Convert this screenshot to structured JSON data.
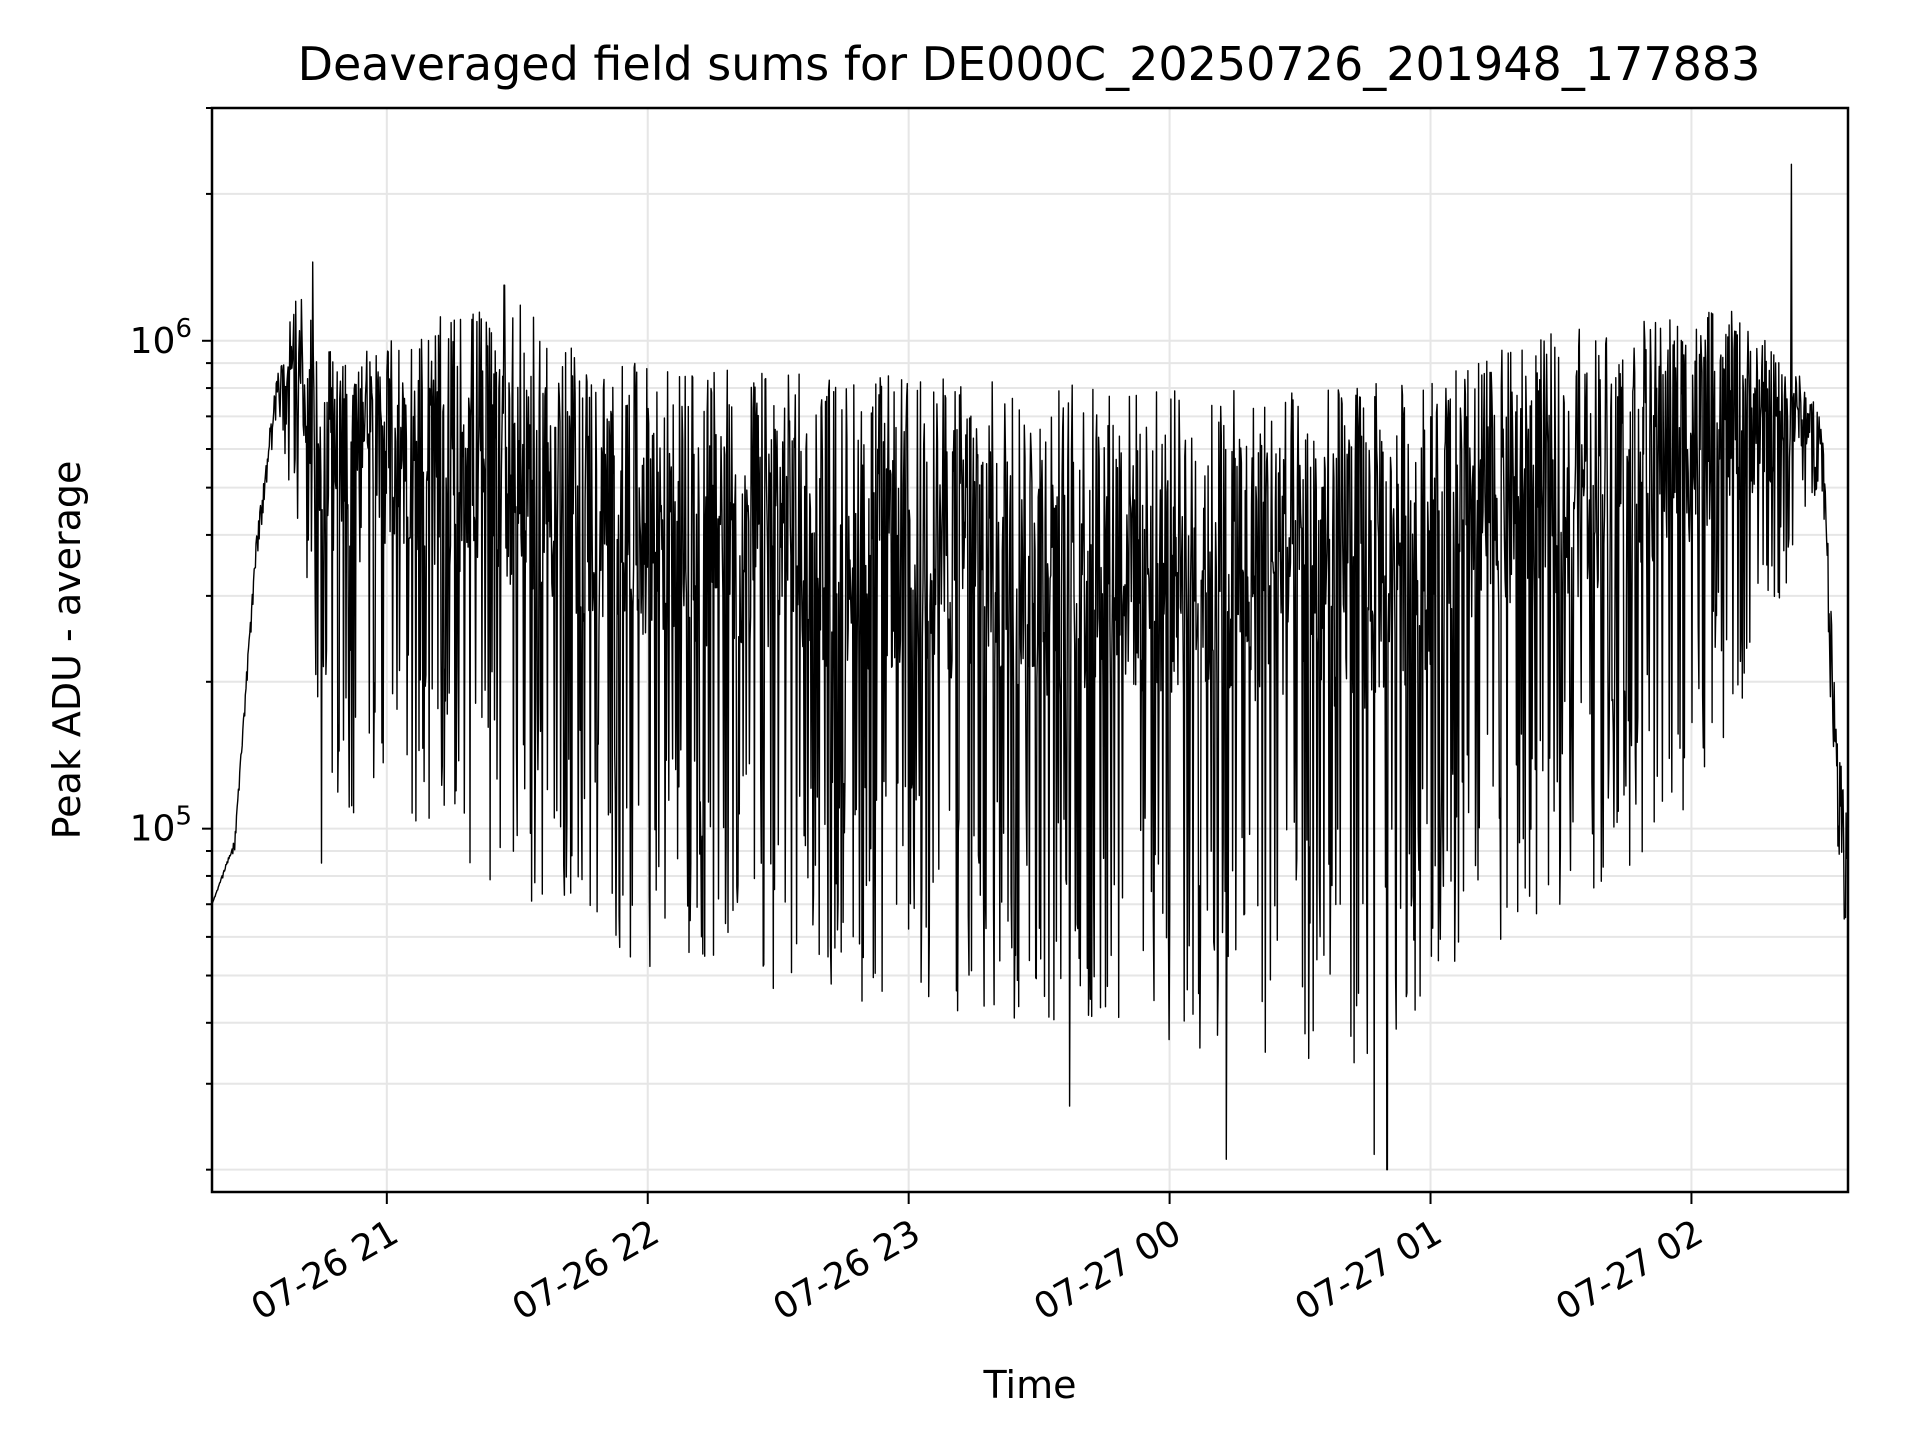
{
  "chart_data": {
    "type": "line",
    "title": "Deaveraged field sums for DE000C_20250726_201948_177883",
    "xlabel": "Time",
    "ylabel": "Peak ADU - average",
    "x_range": [
      "07-26 20:19:48",
      "07-27 02:36:00"
    ],
    "x_ticks": [
      {
        "time": "07-26 21:00",
        "label": "07-26 21"
      },
      {
        "time": "07-26 22:00",
        "label": "07-26 22"
      },
      {
        "time": "07-26 23:00",
        "label": "07-26 23"
      },
      {
        "time": "07-27 00:00",
        "label": "07-27 00"
      },
      {
        "time": "07-27 01:00",
        "label": "07-27 01"
      },
      {
        "time": "07-27 02:00",
        "label": "07-27 02"
      }
    ],
    "y_scale": "log",
    "ylim": [
      18000,
      3000000
    ],
    "y_ticks": [
      {
        "value": 100000,
        "base": "10",
        "exp": "5"
      },
      {
        "value": 1000000,
        "base": "10",
        "exp": "6"
      }
    ],
    "grid": true,
    "series": [
      {
        "color": "#000000",
        "envelope": {
          "times": [
            "20:19:48",
            "20:25",
            "20:30",
            "20:35",
            "20:40",
            "20:45",
            "20:50",
            "20:55",
            "21:00",
            "21:10",
            "21:20",
            "21:30",
            "21:40",
            "21:50",
            "22:00",
            "22:15",
            "22:30",
            "22:45",
            "23:00",
            "23:15",
            "23:30",
            "23:45",
            "00:00",
            "00:15",
            "00:30",
            "00:45",
            "01:00",
            "01:15",
            "01:30",
            "01:45",
            "02:00",
            "02:10",
            "02:20",
            "02:25",
            "02:30",
            "02:33",
            "02:36"
          ],
          "upper": [
            70000,
            95000,
            400000,
            900000,
            1300000,
            1000000,
            950000,
            1000000,
            1000000,
            1100000,
            1200000,
            1200000,
            1000000,
            900000,
            900000,
            880000,
            870000,
            860000,
            850000,
            840000,
            830000,
            820000,
            800000,
            790000,
            800000,
            820000,
            850000,
            950000,
            1050000,
            1100000,
            1150000,
            1150000,
            950000,
            850000,
            700000,
            200000,
            100000
          ],
          "lower": [
            70000,
            90000,
            350000,
            700000,
            300000,
            150000,
            90000,
            100000,
            120000,
            80000,
            70000,
            60000,
            55000,
            50000,
            45000,
            42000,
            40000,
            38000,
            36000,
            33000,
            30000,
            29000,
            30000,
            29000,
            28000,
            25000,
            40000,
            50000,
            60000,
            70000,
            100000,
            150000,
            250000,
            400000,
            500000,
            100000,
            50000
          ]
        },
        "spikes": [
          {
            "time": "20:43",
            "value": 1450000
          },
          {
            "time": "20:45",
            "value": 85000
          },
          {
            "time": "21:27",
            "value": 1300000
          },
          {
            "time": "23:37",
            "value": 27000
          },
          {
            "time": "00:13",
            "value": 21000
          },
          {
            "time": "00:50",
            "value": 20000
          },
          {
            "time": "00:47",
            "value": 21500
          },
          {
            "time": "02:23",
            "value": 2300000
          }
        ]
      }
    ]
  }
}
